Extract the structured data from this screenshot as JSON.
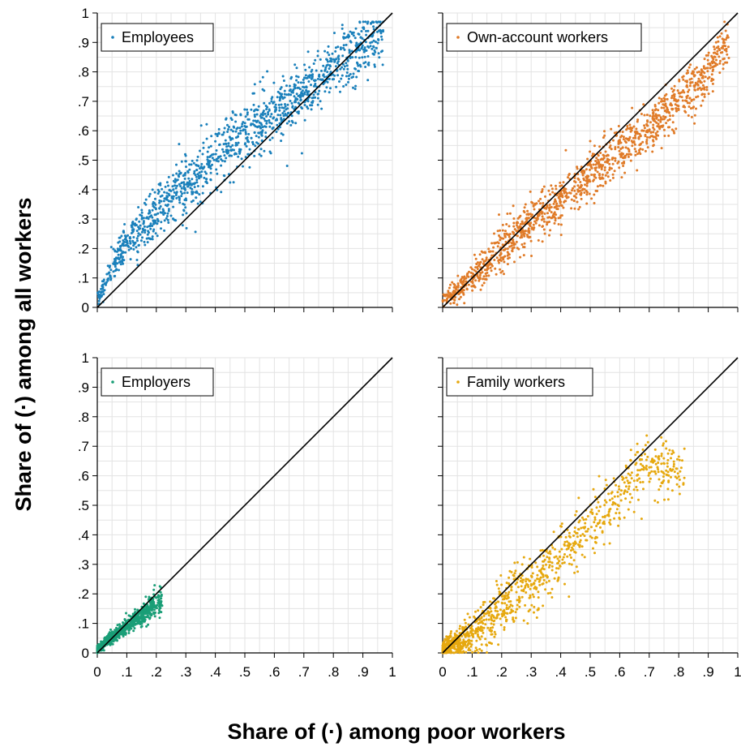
{
  "figure": {
    "ylabel": "Share of (·) among all workers",
    "xlabel": "Share of (·) among poor workers"
  },
  "tick_labels": [
    "0",
    ".1",
    ".2",
    ".3",
    ".4",
    ".5",
    ".6",
    ".7",
    ".8",
    ".9",
    "1"
  ],
  "chart_data": [
    {
      "type": "scatter",
      "legend": "Employees",
      "color": "#1a80bb",
      "xlim": [
        0,
        1
      ],
      "ylim": [
        0,
        1
      ],
      "grid": true,
      "reference_line": "y = x",
      "legend_position": "top-left",
      "point_cloud": {
        "n": 1300,
        "trend": [
          [
            0,
            0.02
          ],
          [
            0.02,
            0.07
          ],
          [
            0.05,
            0.13
          ],
          [
            0.1,
            0.22
          ],
          [
            0.2,
            0.33
          ],
          [
            0.3,
            0.42
          ],
          [
            0.4,
            0.51
          ],
          [
            0.5,
            0.59
          ],
          [
            0.6,
            0.66
          ],
          [
            0.7,
            0.73
          ],
          [
            0.8,
            0.81
          ],
          [
            0.9,
            0.89
          ],
          [
            0.95,
            0.93
          ]
        ],
        "spread": 0.05
      }
    },
    {
      "type": "scatter",
      "legend": "Own-account workers",
      "color": "#e07b28",
      "xlim": [
        0,
        1
      ],
      "ylim": [
        0,
        1
      ],
      "grid": true,
      "reference_line": "y = x",
      "legend_position": "top-left",
      "point_cloud": {
        "n": 1300,
        "trend": [
          [
            0,
            0.02
          ],
          [
            0.1,
            0.1
          ],
          [
            0.2,
            0.2
          ],
          [
            0.3,
            0.29
          ],
          [
            0.4,
            0.37
          ],
          [
            0.5,
            0.45
          ],
          [
            0.6,
            0.53
          ],
          [
            0.7,
            0.61
          ],
          [
            0.8,
            0.7
          ],
          [
            0.9,
            0.8
          ],
          [
            0.97,
            0.92
          ]
        ],
        "spread": 0.04
      }
    },
    {
      "type": "scatter",
      "legend": "Employers",
      "color": "#1a9e77",
      "xlim": [
        0,
        1
      ],
      "ylim": [
        0,
        1
      ],
      "grid": true,
      "reference_line": "y = x",
      "legend_position": "top-left",
      "point_cloud": {
        "n": 900,
        "trend": [
          [
            0,
            0.01
          ],
          [
            0.03,
            0.04
          ],
          [
            0.06,
            0.06
          ],
          [
            0.1,
            0.09
          ],
          [
            0.15,
            0.13
          ],
          [
            0.2,
            0.17
          ]
        ],
        "spread": 0.02,
        "x_range": [
          0,
          0.22
        ]
      }
    },
    {
      "type": "scatter",
      "legend": "Family workers",
      "color": "#e6a80e",
      "xlim": [
        0,
        1
      ],
      "ylim": [
        0,
        1
      ],
      "grid": true,
      "reference_line": "y = x",
      "legend_position": "top-left",
      "point_cloud": {
        "n": 1100,
        "trend": [
          [
            0,
            0.01
          ],
          [
            0.1,
            0.06
          ],
          [
            0.2,
            0.15
          ],
          [
            0.3,
            0.24
          ],
          [
            0.4,
            0.33
          ],
          [
            0.5,
            0.42
          ],
          [
            0.6,
            0.52
          ],
          [
            0.65,
            0.6
          ],
          [
            0.7,
            0.62
          ]
        ],
        "spread": 0.05,
        "x_range": [
          0,
          0.82
        ]
      }
    }
  ]
}
